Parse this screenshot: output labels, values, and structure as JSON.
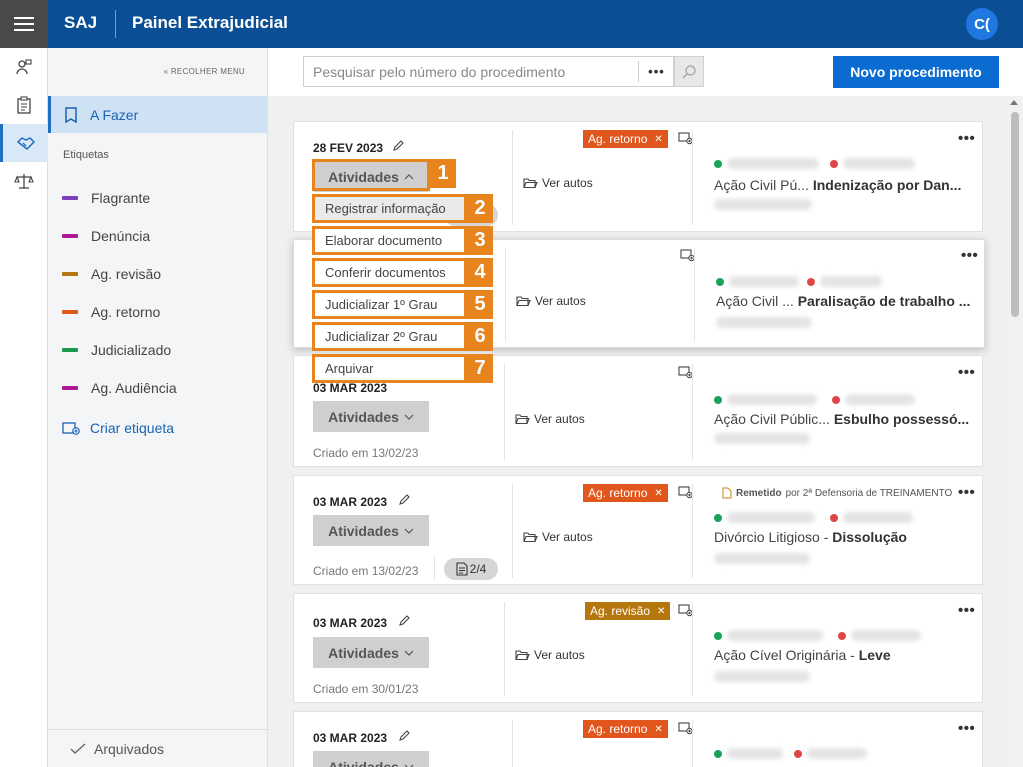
{
  "header": {
    "brand": "SAJ",
    "title": "Painel Extrajudicial",
    "avatar_initials": "C("
  },
  "sidebar": {
    "collapse_label": "RECOLHER MENU",
    "active_item": "A Fazer",
    "section_title": "Etiquetas",
    "tags": [
      {
        "label": "Flagrante",
        "color": "#7b3fbf"
      },
      {
        "label": "Denúncia",
        "color": "#b0189a"
      },
      {
        "label": "Ag. revisão",
        "color": "#b5770d"
      },
      {
        "label": "Ag. retorno",
        "color": "#e0561c"
      },
      {
        "label": "Judicializado",
        "color": "#1a9a4a"
      },
      {
        "label": "Ag. Audiência",
        "color": "#b0189a"
      }
    ],
    "create_tag_label": "Criar etiqueta",
    "archived_label": "Arquivados"
  },
  "toolbar": {
    "search_placeholder": "Pesquisar pelo número do procedimento",
    "more_label": "•••",
    "new_button_label": "Novo procedimento"
  },
  "dropdown": {
    "items": [
      {
        "label": "Registrar informação",
        "number": "2"
      },
      {
        "label": "Elaborar documento",
        "number": "3"
      },
      {
        "label": "Conferir documentos",
        "number": "4"
      },
      {
        "label": "Judicializar 1º Grau",
        "number": "5"
      },
      {
        "label": "Judicializar 2º Grau",
        "number": "6"
      },
      {
        "label": "Arquivar",
        "number": "7"
      }
    ],
    "activity_marker": "1"
  },
  "common": {
    "activities_label": "Atividades",
    "ver_autos_label": "Ver autos",
    "dots": "•••"
  },
  "cards": [
    {
      "date": "28 FEV 2023",
      "tag": "Ag. retorno",
      "tag_color": "#e0561c",
      "proc_class": "Ação Civil Pú...",
      "proc_subject": "Indenização por Dan..."
    },
    {
      "proc_class": "Ação Civil ...",
      "proc_subject": "Paralisação de trabalho ..."
    },
    {
      "date": "03 MAR 2023",
      "created": "Criado em 13/02/23",
      "proc_class": "Ação Civil Públic...",
      "proc_subject": "Esbulho possessó..."
    },
    {
      "date": "03 MAR 2023",
      "created": "Criado em 13/02/23",
      "badge": "2/4",
      "tag": "Ag. retorno",
      "tag_color": "#e0561c",
      "remetido_label": "Remetido",
      "remetido_text": "por 2ª Defensoria de TREINAMENTO",
      "proc_class": "Divórcio Litigioso -",
      "proc_subject": "Dissolução"
    },
    {
      "date": "03 MAR 2023",
      "created": "Criado em 30/01/23",
      "tag": "Ag. revisão",
      "tag_color": "#b5770d",
      "proc_class": "Ação Cível Originária -",
      "proc_subject": "Leve"
    },
    {
      "date": "03 MAR 2023",
      "tag": "Ag. retorno",
      "tag_color": "#e0561c"
    }
  ]
}
